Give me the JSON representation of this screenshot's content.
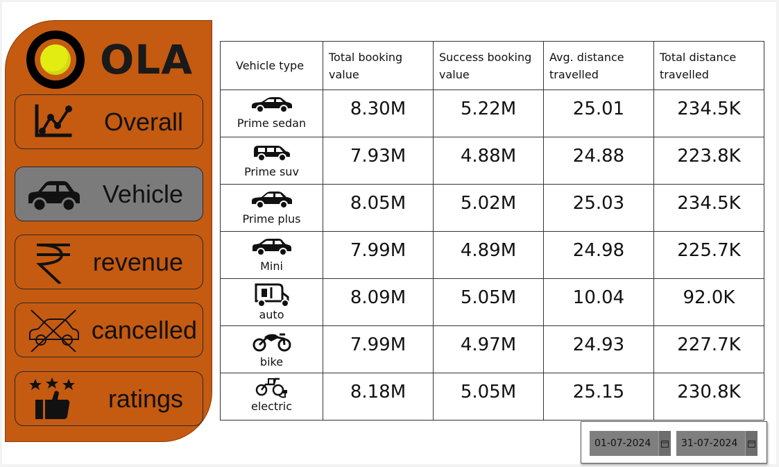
{
  "brand": {
    "name": "OLA"
  },
  "nav": {
    "items": [
      {
        "label": "Overall",
        "icon": "line-chart-icon"
      },
      {
        "label": "Vehicle",
        "icon": "car-icon",
        "active": true
      },
      {
        "label": "revenue",
        "icon": "rupee-icon"
      },
      {
        "label": "cancelled",
        "icon": "cancelled-car-icon"
      },
      {
        "label": "ratings",
        "icon": "thumbs-up-stars-icon"
      }
    ]
  },
  "table": {
    "headers": [
      "Vehicle type",
      "Total booking value",
      "Success booking value",
      "Avg. distance travelled",
      "Total distance travelled"
    ],
    "rows": [
      {
        "vehicle": "Prime sedan",
        "icon": "sedan-icon",
        "total_booking": "8.30M",
        "success_booking": "5.22M",
        "avg_distance": "25.01",
        "total_distance": "234.5K"
      },
      {
        "vehicle": "Prime suv",
        "icon": "suv-icon",
        "total_booking": "7.93M",
        "success_booking": "4.88M",
        "avg_distance": "24.88",
        "total_distance": "223.8K"
      },
      {
        "vehicle": "Prime plus",
        "icon": "sedan-plus-icon",
        "total_booking": "8.05M",
        "success_booking": "5.02M",
        "avg_distance": "25.03",
        "total_distance": "234.5K"
      },
      {
        "vehicle": "Mini",
        "icon": "hatchback-icon",
        "total_booking": "7.99M",
        "success_booking": "4.89M",
        "avg_distance": "24.98",
        "total_distance": "225.7K"
      },
      {
        "vehicle": "auto",
        "icon": "auto-rickshaw-icon",
        "total_booking": "8.09M",
        "success_booking": "5.05M",
        "avg_distance": "10.04",
        "total_distance": "92.0K"
      },
      {
        "vehicle": "bike",
        "icon": "motorbike-icon",
        "total_booking": "7.99M",
        "success_booking": "4.97M",
        "avg_distance": "24.93",
        "total_distance": "227.7K"
      },
      {
        "vehicle": "electric",
        "icon": "electric-scooter-icon",
        "total_booking": "8.18M",
        "success_booking": "5.05M",
        "avg_distance": "25.15",
        "total_distance": "230.8K"
      }
    ]
  },
  "date_filter": {
    "start": "01-07-2024",
    "end": "31-07-2024"
  },
  "colors": {
    "sidebar": "#c55a11",
    "active_button": "#7b7b7b",
    "logo_yellow": "#e3ec12"
  }
}
